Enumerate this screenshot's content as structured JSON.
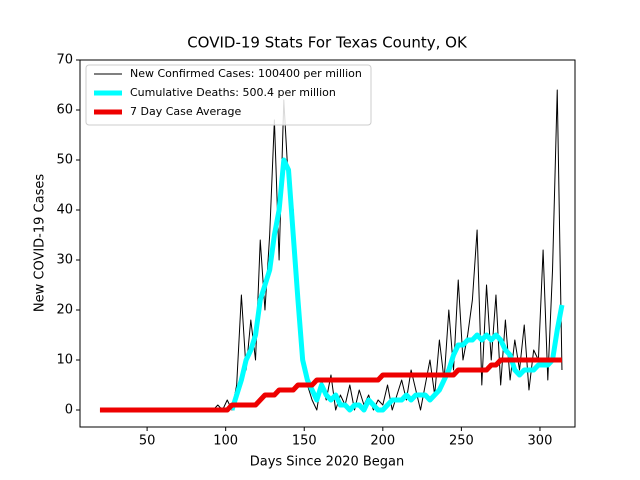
{
  "chart_data": {
    "type": "line",
    "title": "COVID-19 Stats For Texas County, OK",
    "xlabel": "Days Since 2020 Began",
    "ylabel": "New COVID-19 Cases",
    "xlim": [
      7.3,
      322.3
    ],
    "ylim": [
      -3.4,
      70
    ],
    "xticks": [
      50,
      100,
      150,
      200,
      250,
      300
    ],
    "yticks": [
      0,
      10,
      20,
      30,
      40,
      50,
      60,
      70
    ],
    "legend": "upper left",
    "x": [
      20,
      23,
      26,
      29,
      32,
      35,
      38,
      41,
      44,
      47,
      50,
      53,
      56,
      59,
      62,
      65,
      68,
      71,
      74,
      77,
      80,
      83,
      86,
      89,
      92,
      95,
      98,
      101,
      104,
      107,
      110,
      113,
      116,
      119,
      122,
      125,
      128,
      131,
      134,
      137,
      140,
      143,
      146,
      149,
      152,
      155,
      158,
      161,
      164,
      167,
      170,
      173,
      176,
      179,
      182,
      185,
      188,
      191,
      194,
      197,
      200,
      203,
      206,
      209,
      212,
      215,
      218,
      221,
      224,
      227,
      230,
      233,
      236,
      239,
      242,
      245,
      248,
      251,
      254,
      257,
      260,
      263,
      266,
      269,
      272,
      275,
      278,
      281,
      284,
      287,
      290,
      293,
      296,
      299,
      302,
      305,
      308,
      311,
      314
    ],
    "series": [
      {
        "name": "New Confirmed Cases: 100400 per million",
        "color": "#000000",
        "values": [
          0,
          0,
          0,
          0,
          0,
          0,
          0,
          0,
          0,
          0,
          0,
          0,
          0,
          0,
          0,
          0,
          0,
          0,
          0,
          0,
          0,
          0,
          0,
          0,
          0,
          1,
          0,
          2,
          0,
          5,
          23,
          8,
          18,
          10,
          34,
          20,
          35,
          58,
          30,
          62,
          45,
          40,
          20,
          12,
          5,
          2,
          0,
          6,
          2,
          7,
          0,
          3,
          1,
          5,
          0,
          4,
          1,
          3,
          0,
          2,
          1,
          5,
          0,
          3,
          6,
          2,
          8,
          4,
          0,
          5,
          10,
          3,
          14,
          6,
          20,
          8,
          26,
          10,
          15,
          22,
          36,
          5,
          25,
          10,
          23,
          5,
          18,
          6,
          14,
          8,
          17,
          4,
          12,
          10,
          32,
          6,
          28,
          64,
          8
        ]
      },
      {
        "name": "Cumulative Deaths: 500.4 per million",
        "color": "#00ffff",
        "values": [
          null,
          null,
          null,
          null,
          null,
          null,
          null,
          null,
          null,
          null,
          null,
          null,
          null,
          null,
          null,
          null,
          null,
          null,
          null,
          null,
          null,
          null,
          null,
          null,
          null,
          null,
          null,
          null,
          0,
          3,
          6,
          10,
          12,
          15,
          22,
          25,
          28,
          35,
          40,
          50,
          48,
          35,
          22,
          10,
          6,
          4,
          2,
          5,
          3,
          2,
          3,
          1,
          1,
          0,
          1,
          1,
          0,
          2,
          1,
          0,
          0,
          1,
          2,
          2,
          2,
          3,
          2,
          3,
          3,
          3,
          2,
          3,
          4,
          6,
          8,
          11,
          13,
          13,
          14,
          14,
          15,
          14,
          15,
          14,
          15,
          14,
          12,
          11,
          8,
          7,
          8,
          8,
          8,
          9,
          9,
          9,
          10,
          16,
          21
        ]
      },
      {
        "name": "7 Day Case Average",
        "color": "#ee0000",
        "values": [
          0,
          0,
          0,
          0,
          0,
          0,
          0,
          0,
          0,
          0,
          0,
          0,
          0,
          0,
          0,
          0,
          0,
          0,
          0,
          0,
          0,
          0,
          0,
          0,
          0,
          0,
          0,
          0,
          1,
          1,
          1,
          1,
          1,
          1,
          2,
          3,
          3,
          3,
          4,
          4,
          4,
          4,
          5,
          5,
          5,
          5,
          6,
          6,
          6,
          6,
          6,
          6,
          6,
          6,
          6,
          6,
          6,
          6,
          6,
          6,
          7,
          7,
          7,
          7,
          7,
          7,
          7,
          7,
          7,
          7,
          7,
          7,
          7,
          7,
          7,
          7,
          8,
          8,
          8,
          8,
          8,
          8,
          8,
          9,
          9,
          10,
          10,
          10,
          10,
          10,
          10,
          10,
          10,
          10,
          10,
          10,
          10,
          10,
          10
        ]
      }
    ]
  }
}
